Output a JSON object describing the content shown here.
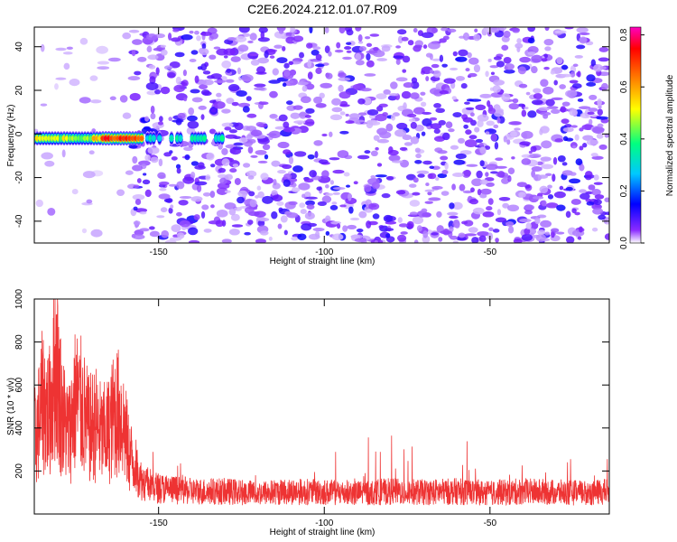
{
  "title": "C2E6.2024.212.01.07.R09",
  "chart_data": [
    {
      "type": "heatmap",
      "xlabel": "Height of straight line (km)",
      "ylabel": "Frequency (Hz)",
      "xlim": [
        -187.5,
        -14
      ],
      "ylim": [
        -50,
        49
      ],
      "xticks": [
        -150,
        -100,
        -50
      ],
      "yticks": [
        -40,
        -20,
        0,
        20,
        40
      ],
      "colorbar": {
        "label": "Normalized spectral amplitude",
        "range": [
          0,
          0.83
        ],
        "ticks": [
          0,
          0.2,
          0.4,
          0.6,
          0.8
        ],
        "colormap": [
          "#ffffff",
          "#6a00ff",
          "#0000ff",
          "#00c8ff",
          "#00ff80",
          "#ffff00",
          "#ff8000",
          "#ff0000",
          "#ff00c0"
        ]
      },
      "features": {
        "signal_band": {
          "x_range": [
            -187.5,
            -130
          ],
          "freq_center": -2,
          "freq_halfwidth": 3,
          "peak_amplitude": 0.82,
          "peak_x": [
            -167,
            -155
          ]
        },
        "noise_onset_x": -158
      }
    },
    {
      "type": "line",
      "xlabel": "Height of straight line (km)",
      "ylabel": "SNR (10 * v/v)",
      "xlim": [
        -187.5,
        -14
      ],
      "ylim": [
        0,
        1000
      ],
      "xticks": [
        -150,
        -100,
        -50
      ],
      "yticks": [
        200,
        400,
        600,
        800,
        1000
      ],
      "color": "#ee3333",
      "series": [
        {
          "x": [
            -187,
            -185,
            -183,
            -181,
            -179,
            -177,
            -175,
            -173,
            -171,
            -169,
            -167,
            -165,
            -163,
            -161,
            -159,
            -157,
            -155,
            -150,
            -140,
            -130,
            -120,
            -110,
            -100,
            -90,
            -80,
            -70,
            -60,
            -50,
            -40,
            -30,
            -20,
            -14
          ],
          "y": [
            480,
            700,
            620,
            950,
            600,
            500,
            720,
            650,
            520,
            560,
            480,
            520,
            640,
            600,
            380,
            300,
            200,
            160,
            140,
            140,
            130,
            140,
            135,
            130,
            140,
            135,
            140,
            130,
            140,
            135,
            130,
            140
          ]
        }
      ]
    }
  ]
}
